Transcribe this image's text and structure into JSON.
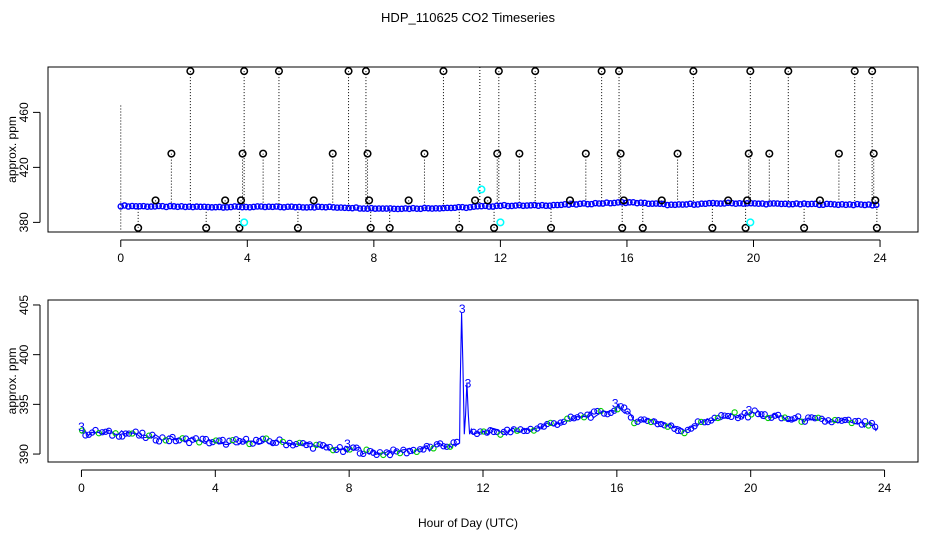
{
  "title": "HDP_110625  CO2 Timeseries",
  "xlabel": "Hour of Day (UTC)",
  "colors": {
    "main": "#0000ff",
    "flag": "#00ffff",
    "smooth": "#00cc00",
    "raw": "#000000"
  },
  "chart_data": [
    {
      "type": "scatter",
      "title": "",
      "ylabel": "approx. ppm",
      "xlim": [
        -2.3,
        25.2
      ],
      "ylim": [
        373,
        493
      ],
      "xticks": [
        0,
        4,
        8,
        12,
        16,
        20,
        24
      ],
      "yticks": [
        380,
        420,
        460
      ],
      "grid": false,
      "baseline": {
        "x": [
          0,
          1,
          2,
          3,
          4,
          5,
          6,
          7,
          7.8,
          8,
          9,
          10,
          11,
          11.3,
          11.7,
          12,
          13,
          14,
          15,
          15.8,
          16,
          17,
          17.5,
          18,
          19,
          19.8,
          20,
          21,
          22,
          23,
          23.8
        ],
        "y": [
          392,
          391.6,
          391.3,
          391.2,
          391.2,
          391.2,
          391.2,
          390.9,
          390.3,
          390.2,
          390.1,
          390.4,
          390.9,
          391.5,
          391.8,
          392.2,
          392.2,
          392.8,
          393.8,
          394.3,
          394.6,
          393.4,
          392.5,
          393.2,
          393.9,
          393.9,
          393.6,
          393.4,
          393.2,
          393.0,
          392.7
        ]
      },
      "flagged_points": [
        {
          "x": 3.9,
          "y": 380
        },
        {
          "x": 11.4,
          "y": 404
        },
        {
          "x": 12.0,
          "y": 380
        },
        {
          "x": 19.9,
          "y": 380
        }
      ],
      "raw_spikes": [
        {
          "x": 0.55,
          "y": 376
        },
        {
          "x": 1.1,
          "y": 396
        },
        {
          "x": 1.6,
          "y": 430
        },
        {
          "x": 2.2,
          "y": 490
        },
        {
          "x": 2.7,
          "y": 376
        },
        {
          "x": 3.3,
          "y": 396
        },
        {
          "x": 3.75,
          "y": 376
        },
        {
          "x": 3.8,
          "y": 396
        },
        {
          "x": 3.85,
          "y": 430
        },
        {
          "x": 3.9,
          "y": 490
        },
        {
          "x": 4.5,
          "y": 430
        },
        {
          "x": 5.0,
          "y": 490
        },
        {
          "x": 5.6,
          "y": 376
        },
        {
          "x": 6.1,
          "y": 396
        },
        {
          "x": 6.7,
          "y": 430
        },
        {
          "x": 7.2,
          "y": 490
        },
        {
          "x": 7.75,
          "y": 490
        },
        {
          "x": 7.8,
          "y": 430
        },
        {
          "x": 7.85,
          "y": 396
        },
        {
          "x": 7.9,
          "y": 376
        },
        {
          "x": 8.5,
          "y": 376
        },
        {
          "x": 9.1,
          "y": 396
        },
        {
          "x": 9.6,
          "y": 430
        },
        {
          "x": 10.2,
          "y": 490
        },
        {
          "x": 10.7,
          "y": 376
        },
        {
          "x": 11.2,
          "y": 396
        },
        {
          "x": 11.6,
          "y": 396
        },
        {
          "x": 11.8,
          "y": 376
        },
        {
          "x": 11.9,
          "y": 430
        },
        {
          "x": 11.95,
          "y": 490
        },
        {
          "x": 12.6,
          "y": 430
        },
        {
          "x": 13.1,
          "y": 490
        },
        {
          "x": 13.6,
          "y": 376
        },
        {
          "x": 14.2,
          "y": 396
        },
        {
          "x": 14.7,
          "y": 430
        },
        {
          "x": 15.2,
          "y": 490
        },
        {
          "x": 15.75,
          "y": 490
        },
        {
          "x": 15.8,
          "y": 430
        },
        {
          "x": 15.85,
          "y": 376
        },
        {
          "x": 15.9,
          "y": 396
        },
        {
          "x": 16.5,
          "y": 376
        },
        {
          "x": 17.1,
          "y": 396
        },
        {
          "x": 17.6,
          "y": 430
        },
        {
          "x": 18.1,
          "y": 490
        },
        {
          "x": 18.7,
          "y": 376
        },
        {
          "x": 19.2,
          "y": 396
        },
        {
          "x": 19.75,
          "y": 376
        },
        {
          "x": 19.8,
          "y": 396
        },
        {
          "x": 19.85,
          "y": 430
        },
        {
          "x": 19.9,
          "y": 490
        },
        {
          "x": 20.5,
          "y": 430
        },
        {
          "x": 21.1,
          "y": 490
        },
        {
          "x": 21.6,
          "y": 376
        },
        {
          "x": 22.1,
          "y": 396
        },
        {
          "x": 22.7,
          "y": 430
        },
        {
          "x": 23.2,
          "y": 490
        },
        {
          "x": 23.75,
          "y": 490
        },
        {
          "x": 23.8,
          "y": 430
        },
        {
          "x": 23.85,
          "y": 396
        },
        {
          "x": 23.9,
          "y": 376
        }
      ]
    },
    {
      "type": "line",
      "title": "",
      "ylabel": "approx. ppm",
      "xlim": [
        -1.0,
        25.0
      ],
      "ylim": [
        389.2,
        405.5
      ],
      "xticks": [
        0,
        4,
        8,
        12,
        16,
        20,
        24
      ],
      "yticks": [
        390,
        395,
        400,
        405
      ],
      "grid": false,
      "series": [
        {
          "x": [
            0,
            0.5,
            1,
            1.5,
            2,
            2.5,
            3,
            3.5,
            4,
            4.5,
            5,
            5.5,
            6,
            6.5,
            7,
            7.5,
            7.95,
            8.05,
            8.5,
            9,
            9.5,
            10,
            10.5,
            11,
            11.3,
            11.32,
            11.36,
            11.4,
            11.44,
            11.48,
            11.52,
            11.56,
            11.6,
            11.65,
            11.7,
            11.8,
            12.05,
            12.5,
            13,
            13.5,
            14,
            14.5,
            15,
            15.5,
            15.95,
            16.05,
            16.5,
            17,
            17.5,
            18,
            18.5,
            19,
            19.5,
            19.95,
            20.05,
            20.5,
            21,
            21.5,
            22,
            22.5,
            23,
            23.5,
            23.8
          ],
          "y": [
            392.1,
            392.2,
            392.0,
            392.1,
            391.7,
            391.5,
            391.4,
            391.4,
            391.2,
            391.2,
            391.3,
            391.3,
            391.2,
            391.0,
            390.8,
            390.6,
            390.2,
            390.6,
            390.2,
            390.1,
            390.2,
            390.4,
            390.7,
            390.9,
            391.1,
            397,
            404.2,
            399,
            392,
            394,
            397.2,
            394,
            392,
            392.5,
            392.0,
            392.1,
            392.3,
            392.2,
            392.3,
            392.5,
            393.0,
            393.4,
            393.8,
            394.1,
            394.3,
            395.0,
            393.4,
            393.4,
            392.8,
            392.3,
            393.2,
            393.6,
            393.9,
            393.9,
            394.2,
            393.8,
            393.6,
            393.5,
            393.4,
            393.3,
            393.2,
            393.0,
            392.6
          ]
        }
      ],
      "labels": [
        {
          "x": 0.0,
          "y": 392.7,
          "text": "3"
        },
        {
          "x": 7.95,
          "y": 391.0,
          "text": "3"
        },
        {
          "x": 11.38,
          "y": 404.6,
          "text": "3"
        },
        {
          "x": 11.55,
          "y": 397.1,
          "text": "3"
        },
        {
          "x": 15.95,
          "y": 395.1,
          "text": "3"
        },
        {
          "x": 19.95,
          "y": 394.4,
          "text": "3"
        }
      ]
    }
  ]
}
